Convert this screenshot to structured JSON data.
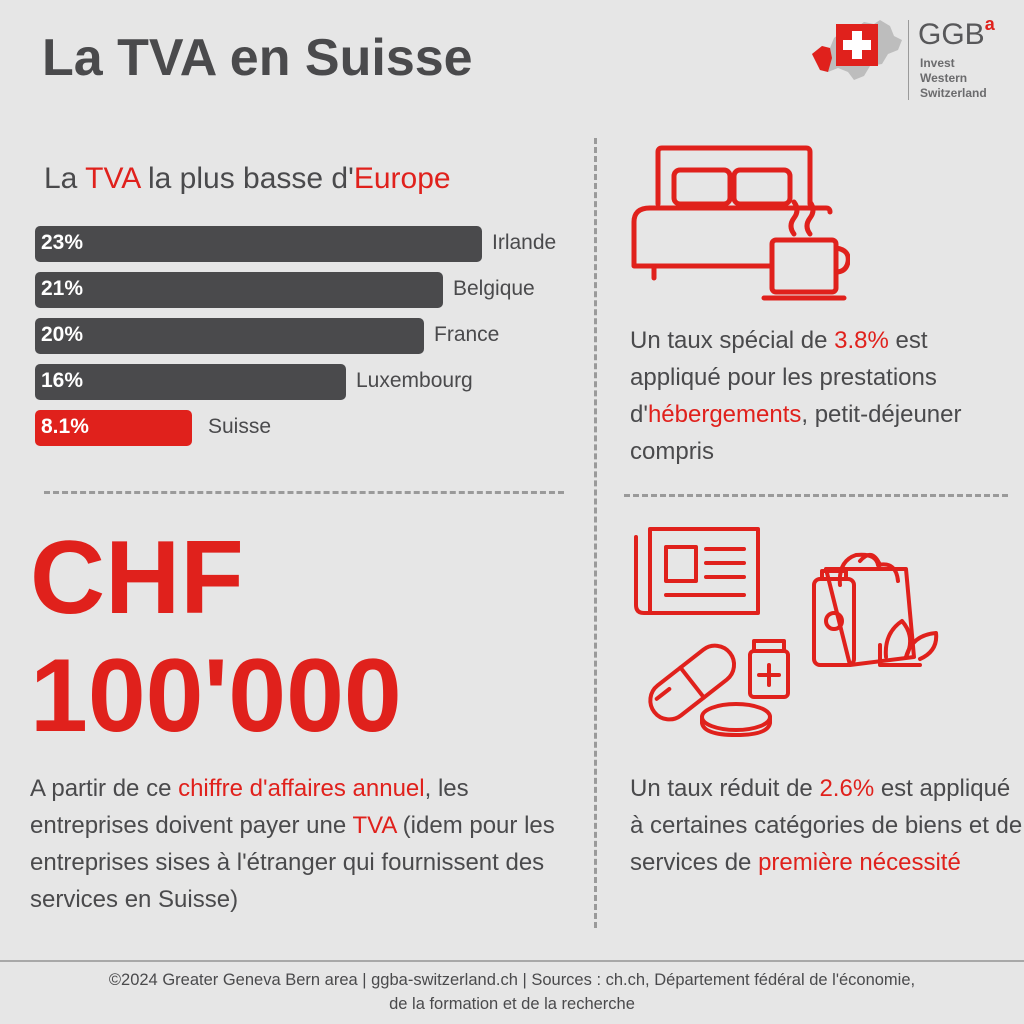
{
  "page": {
    "title": "La TVA en Suisse"
  },
  "logo": {
    "brand": "GGB",
    "brand_sup": "a",
    "tagline": [
      "Invest",
      "Western",
      "Switzerland"
    ]
  },
  "chart_section": {
    "title_parts": [
      "La ",
      "TVA",
      " la plus basse d'",
      "Europe"
    ]
  },
  "chart_data": {
    "type": "bar",
    "orientation": "horizontal",
    "categories": [
      "Irlande",
      "Belgique",
      "France",
      "Luxembourg",
      "Suisse"
    ],
    "values": [
      23,
      21,
      20,
      16,
      8.1
    ],
    "value_labels": [
      "23%",
      "21%",
      "20%",
      "16%",
      "8.1%"
    ],
    "highlight": "Suisse",
    "colors": {
      "default": "#4a4a4c",
      "highlight": "#e0211c"
    }
  },
  "hotel": {
    "icon": "bed-and-coffee-icon",
    "text_parts": [
      "Un taux spécial de ",
      "3.8%",
      " est appliqué pour les prestations d'",
      "hébergements",
      ", petit-déjeuner compris"
    ]
  },
  "threshold": {
    "line1": "CHF",
    "line2": "100'000",
    "desc_parts": [
      "A partir de ce ",
      "chiffre d'affaires annuel",
      ", les entreprises doivent payer une ",
      "TVA",
      " (idem pour les entreprises sises à l'étranger qui fournissent des services en Suisse)"
    ]
  },
  "reduced": {
    "icon": "newspaper-groceries-medicine-icon",
    "text_parts": [
      "Un taux réduit de ",
      "2.6%",
      " est appliqué à certaines catégories de biens et de services de ",
      "première nécessité"
    ]
  },
  "footer": {
    "line1": "©2024 Greater Geneva Bern area | ggba-switzerland.ch | Sources : ch.ch, Département fédéral de l'économie,",
    "line2": "de la formation et de la recherche"
  },
  "colors": {
    "accent": "#e0211c",
    "text": "#4a4a4c",
    "background": "#e6e6e6"
  }
}
